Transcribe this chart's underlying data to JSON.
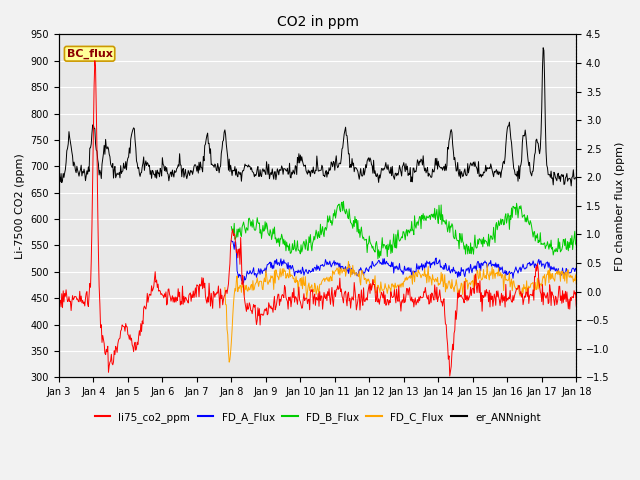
{
  "title": "CO2 in ppm",
  "ylabel_left": "Li-7500 CO2 (ppm)",
  "ylabel_right": "FD chamber flux (ppm)",
  "ylim_left": [
    300,
    950
  ],
  "ylim_right": [
    -1.5,
    4.5
  ],
  "yticks_left": [
    300,
    350,
    400,
    450,
    500,
    550,
    600,
    650,
    700,
    750,
    800,
    850,
    900,
    950
  ],
  "yticks_right": [
    -1.5,
    -1.0,
    -0.5,
    0.0,
    0.5,
    1.0,
    1.5,
    2.0,
    2.5,
    3.0,
    3.5,
    4.0,
    4.5
  ],
  "xtick_labels": [
    "Jan 3",
    "Jan 4",
    "Jan 5",
    "Jan 6",
    "Jan 7",
    "Jan 8",
    "Jan 9",
    "Jan 10",
    "Jan 11",
    "Jan 12",
    "Jan 13",
    "Jan 14",
    "Jan 15",
    "Jan 16",
    "Jan 17",
    "Jan 18"
  ],
  "colors": {
    "li75": "#ff0000",
    "fd_a": "#0000ff",
    "fd_b": "#00cc00",
    "fd_c": "#ffa500",
    "er_ann": "#000000"
  },
  "bc_flux_box_color": "#ffff99",
  "bc_flux_border_color": "#8b0000",
  "background_color": "#e8e8e8",
  "grid_color": "#ffffff",
  "linewidth": 0.7,
  "seed": 42
}
